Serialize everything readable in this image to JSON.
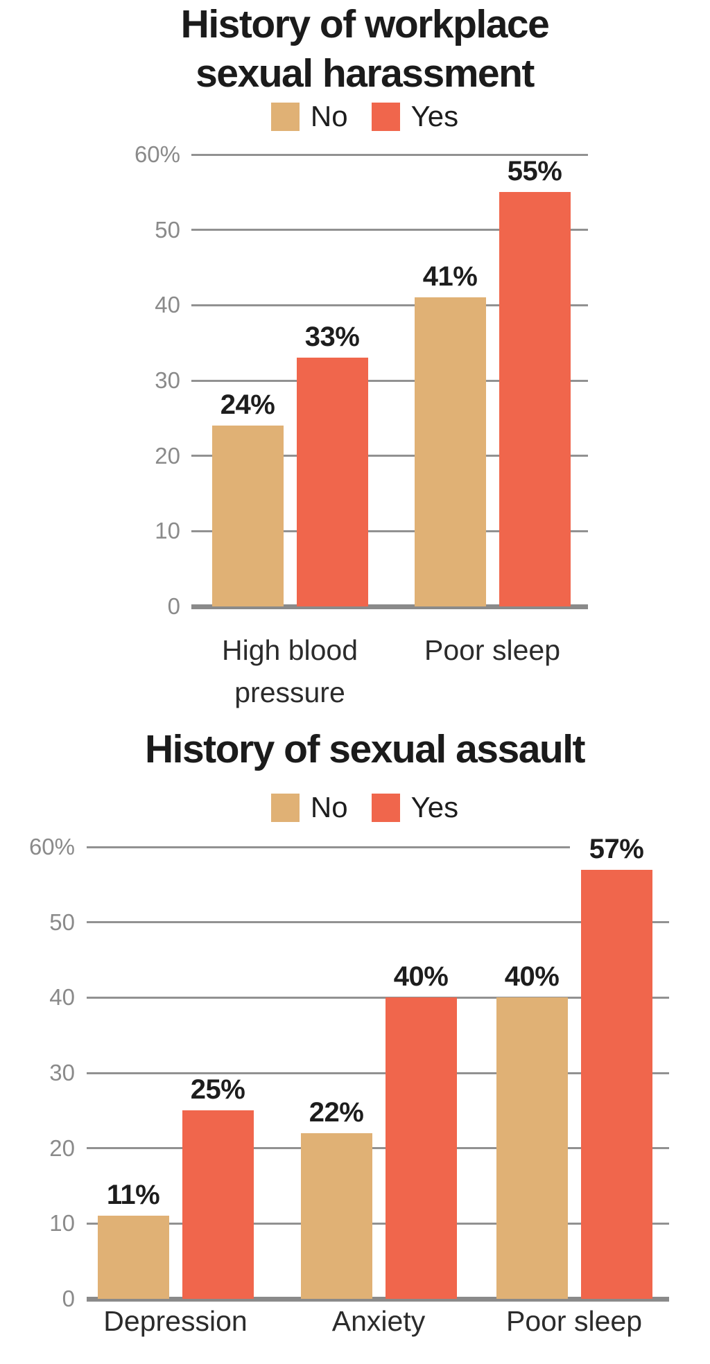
{
  "figure": {
    "colors": {
      "no": "#E0B175",
      "yes": "#F0664C",
      "gridline": "#919191",
      "axis_baseline": "#8A8A8A",
      "tick_text": "#8A8A8A",
      "value_text": "#1D1D1D",
      "title_text": "#1B1B1B"
    }
  },
  "chart_data": [
    {
      "type": "bar",
      "title": "History of workplace\nsexual harassment",
      "legend_position": "top",
      "legend": [
        "No",
        "Yes"
      ],
      "grid": true,
      "unit": "%",
      "ylim": [
        0,
        60
      ],
      "yticks": [
        0,
        10,
        20,
        30,
        40,
        50,
        60
      ],
      "ytick_labels": [
        "0",
        "10",
        "20",
        "30",
        "40",
        "50",
        "60%"
      ],
      "categories": [
        "High blood\npressure",
        "Poor sleep"
      ],
      "series": [
        {
          "name": "No",
          "values": [
            24,
            41
          ]
        },
        {
          "name": "Yes",
          "values": [
            33,
            55
          ]
        }
      ],
      "bar_value_labels": [
        [
          "24%",
          "41%"
        ],
        [
          "33%",
          "55%"
        ]
      ]
    },
    {
      "type": "bar",
      "title": "History of sexual assault",
      "legend_position": "top",
      "legend": [
        "No",
        "Yes"
      ],
      "grid": true,
      "unit": "%",
      "ylim": [
        0,
        60
      ],
      "yticks": [
        0,
        10,
        20,
        30,
        40,
        50,
        60
      ],
      "ytick_labels": [
        "0",
        "10",
        "20",
        "30",
        "40",
        "50",
        "60%"
      ],
      "categories": [
        "Depression",
        "Anxiety",
        "Poor sleep"
      ],
      "series": [
        {
          "name": "No",
          "values": [
            11,
            22,
            40
          ]
        },
        {
          "name": "Yes",
          "values": [
            25,
            40,
            57
          ]
        }
      ],
      "bar_value_labels": [
        [
          "11%",
          "22%",
          "40%"
        ],
        [
          "25%",
          "40%",
          "57%"
        ]
      ]
    }
  ]
}
